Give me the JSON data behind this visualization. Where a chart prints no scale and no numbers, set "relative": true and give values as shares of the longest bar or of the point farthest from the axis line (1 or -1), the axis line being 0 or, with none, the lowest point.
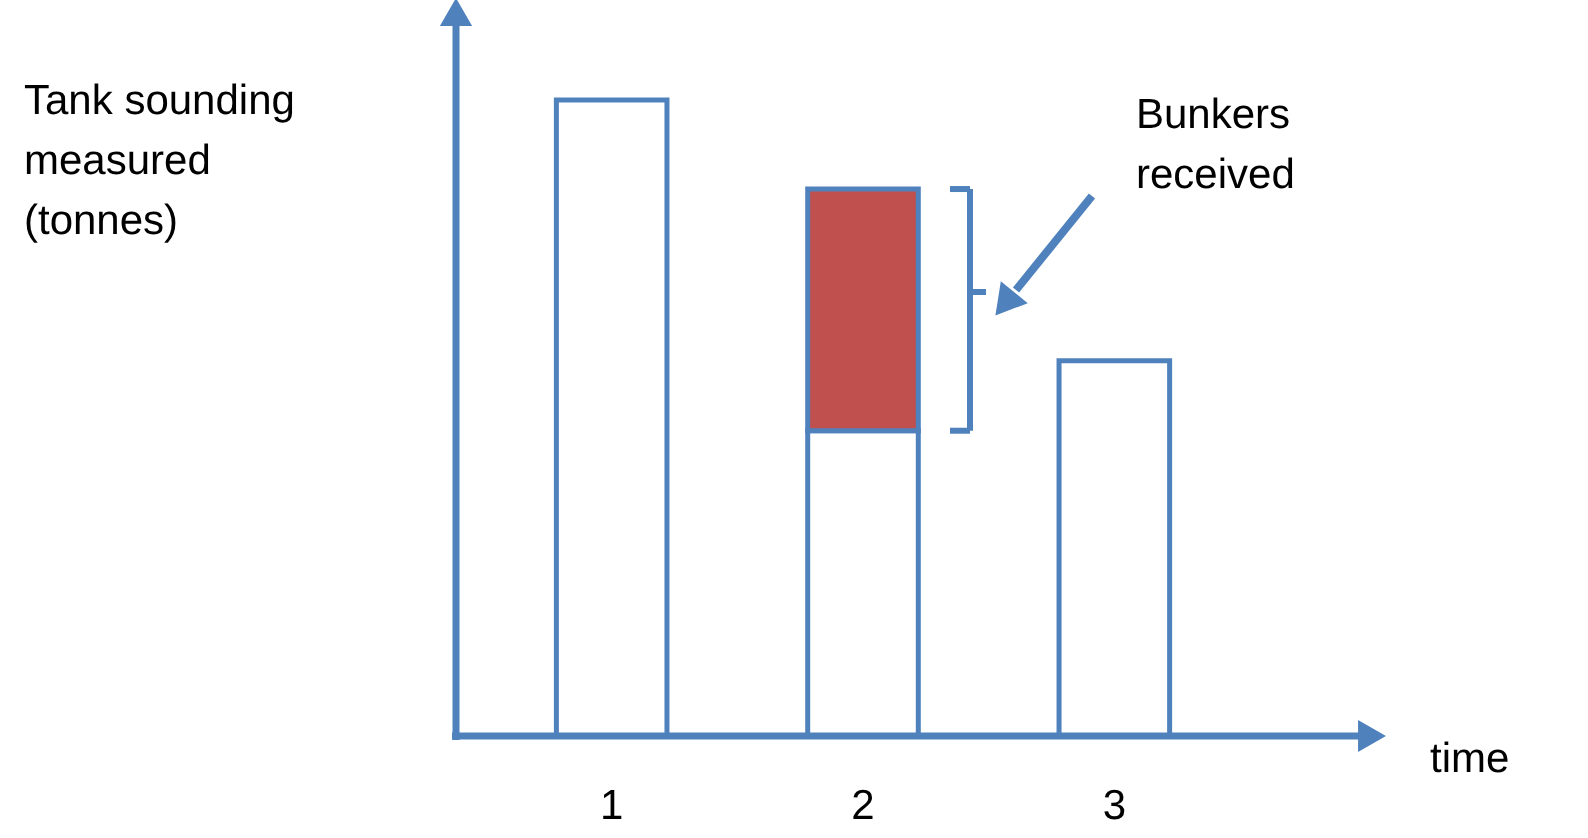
{
  "chart_data": {
    "type": "bar",
    "stacked": true,
    "relative": true,
    "grid": false,
    "ylabel": "Tank sounding measured (tonnes)",
    "xlabel": "time",
    "categories": [
      "1",
      "2",
      "3"
    ],
    "series": [
      {
        "color": "#ffffff",
        "values": [
          1,
          0.48,
          0.59
        ]
      },
      {
        "color": "#c0504d",
        "values": [
          null,
          0.38,
          null
        ]
      }
    ],
    "annotations": [
      "Bunkers received"
    ]
  }
}
